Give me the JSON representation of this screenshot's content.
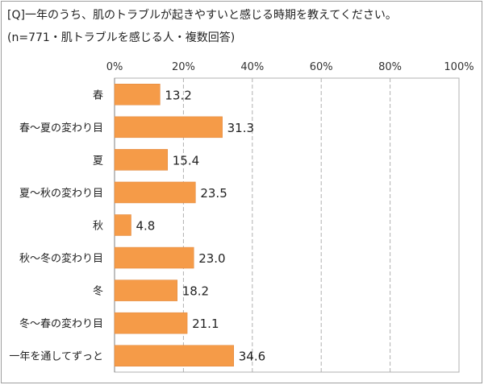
{
  "title_line1": "[Q]一年のうち、肌のトラブルが起きやすいと感じる時期を教えてください。",
  "title_line2": "(n=771・肌トラブルを感じる人・複数回答)",
  "colors": {
    "bar": "#f59b48",
    "bar_stroke": "#e0853a",
    "grid": "#b0b0b0",
    "axis": "#7f7f7f"
  },
  "chart_data": {
    "type": "bar",
    "orientation": "horizontal",
    "categories": [
      "春",
      "春～夏の変わり目",
      "夏",
      "夏～秋の変わり目",
      "秋",
      "秋～冬の変わり目",
      "冬",
      "冬～春の変わり目",
      "一年を通してずっと"
    ],
    "values": [
      13.2,
      31.3,
      15.4,
      23.5,
      4.8,
      23.0,
      18.2,
      21.1,
      34.6
    ],
    "value_labels": [
      "13.2",
      "31.3",
      "15.4",
      "23.5",
      "4.8",
      "23.0",
      "18.2",
      "21.1",
      "34.6"
    ],
    "xlim": [
      0,
      100
    ],
    "ticks": [
      0,
      20,
      40,
      60,
      80,
      100
    ],
    "tick_labels": [
      "0%",
      "20%",
      "40%",
      "60%",
      "80%",
      "100%"
    ],
    "grid": true,
    "gridline_style": "dashed",
    "legend": "none"
  }
}
